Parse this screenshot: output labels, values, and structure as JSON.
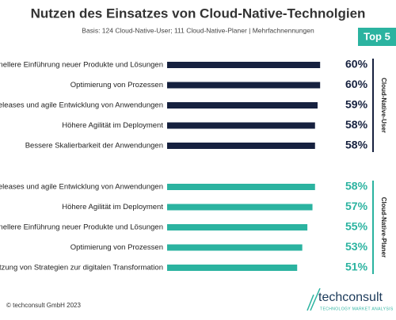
{
  "title": "Nutzen des Einsatzes von Cloud-Native-Technolgien",
  "subtitle": "Basis: 124 Cloud-Native-User; 111 Cloud-Native-Planer |  Mehrfachnennungen",
  "badge": "Top 5",
  "footer": "© techconsult GmbH 2023",
  "logo": "techconsult",
  "logo_tagline": "TECHNOLOGY MARKET ANALYSIS",
  "chart_data": [
    {
      "type": "bar",
      "orientation": "horizontal",
      "group_label": "Cloud-Native-User",
      "color": "#16213f",
      "categories": [
        "Schnellere Einführung neuer Produkte und Lösungen",
        "Optimierung von Prozessen",
        "Schnelle Releases und agile Entwicklung von Anwendungen",
        "Höhere Agilität im Deployment",
        "Bessere Skalierbarkeit der Anwendungen"
      ],
      "values": [
        60,
        60,
        59,
        58,
        58
      ],
      "value_labels": [
        "60%",
        "60%",
        "59%",
        "58%",
        "58%"
      ]
    },
    {
      "type": "bar",
      "orientation": "horizontal",
      "group_label": "Cloud-Native-Planer",
      "color": "#2bb3a0",
      "categories": [
        "Schnelle Releases und agile Entwicklung von Anwendungen",
        "Höhere Agilität im Deployment",
        "Schnellere Einführung neuer Produkte und Lösungen",
        "Optimierung von Prozessen",
        "Unterstützung von Strategien zur digitalen Transformation"
      ],
      "values": [
        58,
        57,
        55,
        53,
        51
      ],
      "value_labels": [
        "58%",
        "57%",
        "55%",
        "53%",
        "51%"
      ]
    }
  ]
}
